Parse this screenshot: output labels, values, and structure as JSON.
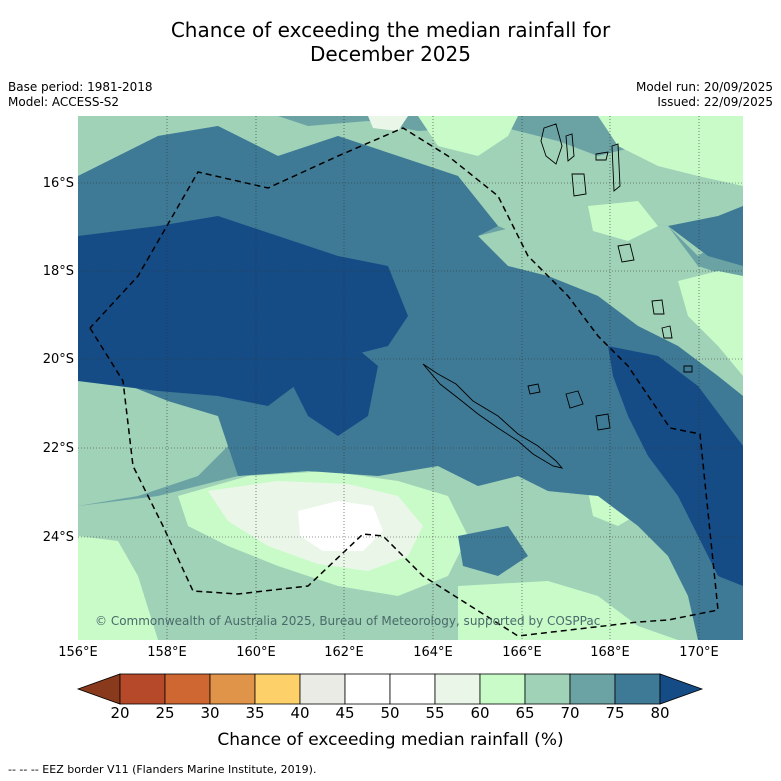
{
  "title_line1": "Chance of exceeding the median rainfall for",
  "title_line2": "December 2025",
  "base_period": "Base period: 1981-2018",
  "model": "Model: ACCESS-S2",
  "model_run": "Model run: 20/09/2025",
  "issued": "Issued: 22/09/2025",
  "copyright": "© Commonwealth of Australia 2025, Bureau of Meteorology, supported by COSPPac",
  "lat_labels": [
    "16°S",
    "18°S",
    "20°S",
    "22°S",
    "24°S"
  ],
  "lon_labels": [
    "156°E",
    "158°E",
    "160°E",
    "162°E",
    "164°E",
    "166°E",
    "168°E",
    "170°E"
  ],
  "colorbar": {
    "label": "Chance of exceeding median rainfall (%)",
    "ticks": [
      "20",
      "25",
      "30",
      "35",
      "40",
      "45",
      "50",
      "55",
      "60",
      "65",
      "70",
      "75",
      "80"
    ],
    "colors": [
      "#8a3a1c",
      "#b5492a",
      "#cf6733",
      "#e0944a",
      "#fdd06a",
      "#ebebe6",
      "#ffffff",
      "#ffffff",
      "#eaf7e8",
      "#c9fbc9",
      "#9fd2b7",
      "#6ba3a5",
      "#3e7a96",
      "#164c86"
    ]
  },
  "footnote": "-- -- -- EEZ border V11 (Flanders Marine Institute, 2019)."
}
